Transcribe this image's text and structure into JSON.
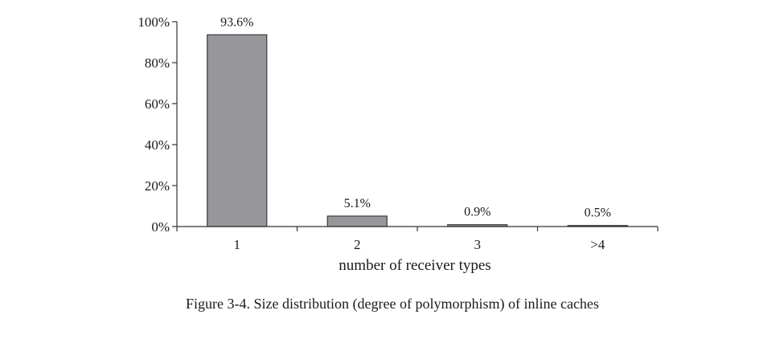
{
  "chart_data": {
    "type": "bar",
    "categories": [
      "1",
      "2",
      "3",
      ">4"
    ],
    "values": [
      93.6,
      5.1,
      0.9,
      0.5
    ],
    "data_labels": [
      "93.6%",
      "5.1%",
      "0.9%",
      "0.5%"
    ],
    "y_tick_labels": [
      "0%",
      "20%",
      "40%",
      "60%",
      "80%",
      "100%"
    ],
    "ylim": [
      0,
      100
    ],
    "xlabel": "number of receiver types",
    "ylabel": "",
    "grid": false,
    "bar_color": "#97979b"
  },
  "caption": "Figure 3-4.  Size distribution (degree of polymorphism) of inline caches"
}
